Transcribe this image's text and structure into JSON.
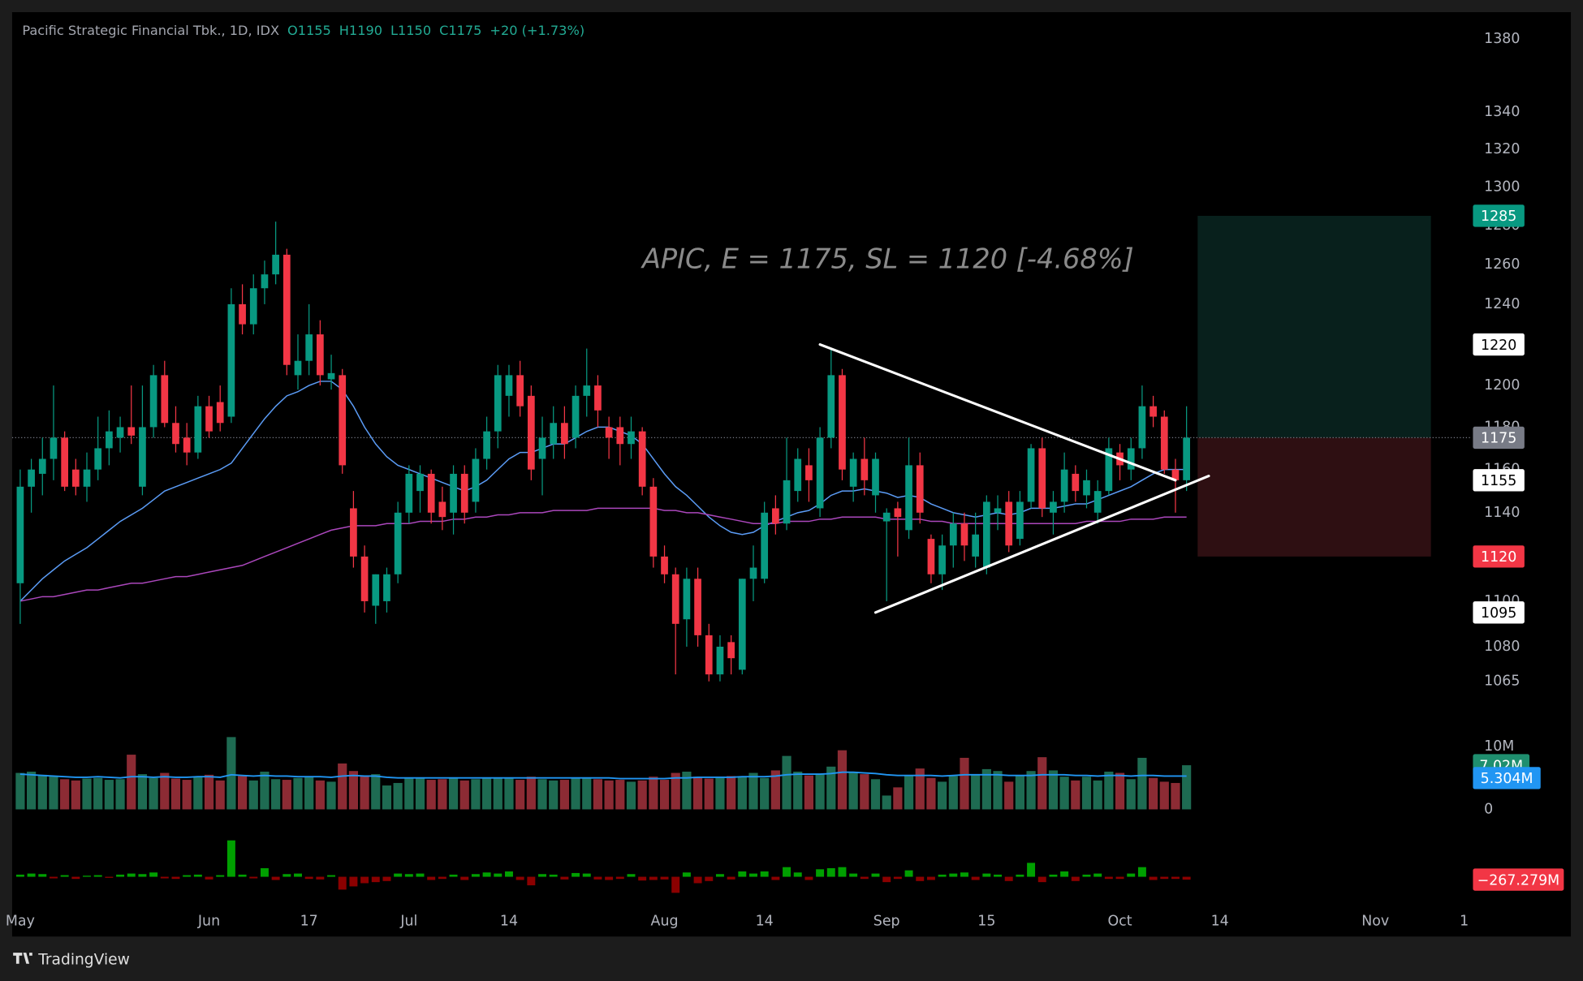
{
  "chart_data": {
    "type": "candlestick",
    "symbol": "Pacific Strategic Financial Tbk., 1D, IDX",
    "legend_values": [
      "O1155",
      "H1190",
      "L1150",
      "C1175",
      "+20 (+1.73%)"
    ],
    "annotation": "APIC, E = 1175, SL = 1120 [-4.68%]",
    "up_color": "#089981",
    "down_color": "#f23645",
    "log": true,
    "ylim": [
      1050,
      1395
    ],
    "yticks": [
      1380,
      1340,
      1320,
      1300,
      1280,
      1260,
      1240,
      1200,
      1180,
      1160,
      1140,
      1100,
      1080,
      1065
    ],
    "xlim": [
      -0.73,
      139.6
    ],
    "xticks": [
      {
        "value": 0,
        "label": "May"
      },
      {
        "value": 17,
        "label": "Jun"
      },
      {
        "value": 26,
        "label": "17"
      },
      {
        "value": 35,
        "label": "Jul"
      },
      {
        "value": 44,
        "label": "14"
      },
      {
        "value": 58,
        "label": "Aug"
      },
      {
        "value": 67,
        "label": "14"
      },
      {
        "value": 78,
        "label": "Sep"
      },
      {
        "value": 87,
        "label": "15"
      },
      {
        "value": 99,
        "label": "Oct"
      },
      {
        "value": 108,
        "label": "14"
      },
      {
        "value": 122,
        "label": "Nov"
      },
      {
        "value": 130,
        "label": "1"
      }
    ],
    "ohlc": [
      [
        1108,
        1160,
        1090,
        1152
      ],
      [
        1152,
        1165,
        1140,
        1160
      ],
      [
        1158,
        1175,
        1148,
        1165
      ],
      [
        1165,
        1200,
        1155,
        1175
      ],
      [
        1175,
        1178,
        1150,
        1152
      ],
      [
        1160,
        1165,
        1148,
        1152
      ],
      [
        1152,
        1168,
        1145,
        1160
      ],
      [
        1160,
        1185,
        1155,
        1170
      ],
      [
        1170,
        1188,
        1162,
        1178
      ],
      [
        1175,
        1185,
        1168,
        1180
      ],
      [
        1180,
        1200,
        1172,
        1176
      ],
      [
        1152,
        1200,
        1148,
        1180
      ],
      [
        1180,
        1210,
        1175,
        1205
      ],
      [
        1205,
        1212,
        1180,
        1182
      ],
      [
        1182,
        1190,
        1168,
        1172
      ],
      [
        1175,
        1182,
        1162,
        1168
      ],
      [
        1168,
        1195,
        1165,
        1190
      ],
      [
        1190,
        1195,
        1175,
        1178
      ],
      [
        1192,
        1200,
        1178,
        1182
      ],
      [
        1185,
        1248,
        1182,
        1240
      ],
      [
        1240,
        1250,
        1225,
        1230
      ],
      [
        1230,
        1255,
        1225,
        1248
      ],
      [
        1248,
        1262,
        1240,
        1255
      ],
      [
        1255,
        1282,
        1250,
        1265
      ],
      [
        1265,
        1268,
        1205,
        1210
      ],
      [
        1205,
        1225,
        1198,
        1212
      ],
      [
        1212,
        1240,
        1205,
        1225
      ],
      [
        1225,
        1232,
        1200,
        1205
      ],
      [
        1203,
        1215,
        1198,
        1206
      ],
      [
        1205,
        1208,
        1158,
        1162
      ],
      [
        1142,
        1150,
        1115,
        1120
      ],
      [
        1120,
        1125,
        1095,
        1100
      ],
      [
        1098,
        1112,
        1090,
        1112
      ],
      [
        1100,
        1115,
        1095,
        1112
      ],
      [
        1112,
        1145,
        1108,
        1140
      ],
      [
        1140,
        1162,
        1135,
        1158
      ],
      [
        1150,
        1162,
        1140,
        1158
      ],
      [
        1158,
        1160,
        1135,
        1140
      ],
      [
        1145,
        1152,
        1132,
        1138
      ],
      [
        1140,
        1162,
        1130,
        1158
      ],
      [
        1158,
        1162,
        1135,
        1140
      ],
      [
        1145,
        1170,
        1140,
        1165
      ],
      [
        1165,
        1185,
        1160,
        1178
      ],
      [
        1178,
        1210,
        1170,
        1205
      ],
      [
        1195,
        1210,
        1185,
        1205
      ],
      [
        1205,
        1212,
        1185,
        1190
      ],
      [
        1195,
        1200,
        1155,
        1160
      ],
      [
        1165,
        1185,
        1148,
        1175
      ],
      [
        1172,
        1190,
        1165,
        1182
      ],
      [
        1182,
        1190,
        1165,
        1172
      ],
      [
        1175,
        1200,
        1170,
        1195
      ],
      [
        1195,
        1218,
        1185,
        1200
      ],
      [
        1200,
        1205,
        1180,
        1188
      ],
      [
        1180,
        1185,
        1165,
        1175
      ],
      [
        1180,
        1185,
        1162,
        1172
      ],
      [
        1172,
        1185,
        1165,
        1178
      ],
      [
        1178,
        1180,
        1148,
        1152
      ],
      [
        1152,
        1156,
        1115,
        1120
      ],
      [
        1120,
        1125,
        1108,
        1112
      ],
      [
        1112,
        1115,
        1068,
        1090
      ],
      [
        1092,
        1115,
        1080,
        1110
      ],
      [
        1110,
        1115,
        1080,
        1085
      ],
      [
        1085,
        1090,
        1065,
        1068
      ],
      [
        1068,
        1085,
        1065,
        1080
      ],
      [
        1082,
        1085,
        1068,
        1075
      ],
      [
        1070,
        1110,
        1068,
        1110
      ],
      [
        1110,
        1125,
        1100,
        1115
      ],
      [
        1110,
        1145,
        1108,
        1140
      ],
      [
        1142,
        1148,
        1130,
        1135
      ],
      [
        1135,
        1175,
        1132,
        1155
      ],
      [
        1150,
        1170,
        1145,
        1165
      ],
      [
        1162,
        1170,
        1145,
        1155
      ],
      [
        1142,
        1180,
        1138,
        1175
      ],
      [
        1175,
        1218,
        1170,
        1205
      ],
      [
        1205,
        1208,
        1155,
        1160
      ],
      [
        1152,
        1168,
        1145,
        1165
      ],
      [
        1165,
        1175,
        1148,
        1155
      ],
      [
        1148,
        1168,
        1140,
        1165
      ],
      [
        1136,
        1142,
        1100,
        1140
      ],
      [
        1142,
        1145,
        1120,
        1138
      ],
      [
        1132,
        1175,
        1128,
        1162
      ],
      [
        1162,
        1168,
        1135,
        1140
      ],
      [
        1128,
        1130,
        1108,
        1112
      ],
      [
        1112,
        1130,
        1105,
        1125
      ],
      [
        1125,
        1140,
        1115,
        1135
      ],
      [
        1135,
        1140,
        1118,
        1125
      ],
      [
        1120,
        1140,
        1115,
        1130
      ],
      [
        1115,
        1148,
        1112,
        1145
      ],
      [
        1140,
        1148,
        1132,
        1142
      ],
      [
        1145,
        1150,
        1122,
        1125
      ],
      [
        1128,
        1150,
        1125,
        1145
      ],
      [
        1145,
        1172,
        1142,
        1170
      ],
      [
        1170,
        1175,
        1138,
        1142
      ],
      [
        1140,
        1150,
        1130,
        1145
      ],
      [
        1145,
        1168,
        1140,
        1160
      ],
      [
        1158,
        1162,
        1145,
        1150
      ],
      [
        1148,
        1160,
        1142,
        1155
      ],
      [
        1140,
        1155,
        1135,
        1150
      ],
      [
        1150,
        1175,
        1148,
        1170
      ],
      [
        1168,
        1172,
        1155,
        1162
      ],
      [
        1160,
        1175,
        1155,
        1170
      ],
      [
        1170,
        1200,
        1165,
        1190
      ],
      [
        1190,
        1195,
        1180,
        1185
      ],
      [
        1185,
        1188,
        1158,
        1160
      ],
      [
        1160,
        1165,
        1140,
        1155
      ],
      [
        1155,
        1190,
        1150,
        1175
      ]
    ],
    "ma": [
      {
        "color": "#5b9cf6",
        "values": [
          1100,
          1105,
          1110,
          1114,
          1118,
          1121,
          1124,
          1128,
          1132,
          1136,
          1139,
          1142,
          1146,
          1150,
          1152,
          1154,
          1156,
          1158,
          1160,
          1163,
          1170,
          1177,
          1184,
          1190,
          1195,
          1197,
          1200,
          1202,
          1202,
          1198,
          1190,
          1180,
          1172,
          1166,
          1162,
          1160,
          1158,
          1156,
          1154,
          1152,
          1150,
          1152,
          1155,
          1160,
          1165,
          1168,
          1168,
          1170,
          1172,
          1172,
          1175,
          1178,
          1180,
          1180,
          1178,
          1176,
          1172,
          1165,
          1158,
          1152,
          1148,
          1143,
          1138,
          1134,
          1131,
          1130,
          1131,
          1134,
          1136,
          1138,
          1140,
          1141,
          1144,
          1148,
          1150,
          1150,
          1151,
          1150,
          1149,
          1147,
          1148,
          1147,
          1144,
          1142,
          1140,
          1139,
          1138,
          1139,
          1140,
          1139,
          1140,
          1142,
          1142,
          1142,
          1143,
          1144,
          1144,
          1146,
          1148,
          1150,
          1152,
          1155,
          1158,
          1160,
          1160,
          1160
        ]
      },
      {
        "color": "#ab47bc",
        "values": [
          1100,
          1101,
          1102,
          1102,
          1103,
          1104,
          1105,
          1105,
          1106,
          1107,
          1108,
          1108,
          1109,
          1110,
          1111,
          1111,
          1112,
          1113,
          1114,
          1115,
          1116,
          1118,
          1120,
          1122,
          1124,
          1126,
          1128,
          1130,
          1132,
          1133,
          1134,
          1134,
          1134,
          1135,
          1135,
          1135,
          1136,
          1136,
          1136,
          1137,
          1137,
          1138,
          1138,
          1139,
          1139,
          1140,
          1140,
          1140,
          1141,
          1141,
          1141,
          1141,
          1142,
          1142,
          1142,
          1142,
          1142,
          1142,
          1141,
          1141,
          1140,
          1140,
          1139,
          1138,
          1137,
          1136,
          1135,
          1135,
          1135,
          1136,
          1136,
          1136,
          1137,
          1137,
          1138,
          1138,
          1138,
          1138,
          1137,
          1137,
          1137,
          1137,
          1136,
          1136,
          1135,
          1135,
          1135,
          1135,
          1135,
          1135,
          1135,
          1135,
          1135,
          1135,
          1135,
          1135,
          1136,
          1136,
          1136,
          1136,
          1137,
          1137,
          1137,
          1138,
          1138,
          1138
        ]
      }
    ],
    "trendlines": [
      {
        "color": "#ffffff",
        "x": [
          72,
          104
        ],
        "y": [
          1220,
          1155
        ]
      },
      {
        "color": "#ffffff",
        "x": [
          77,
          107
        ],
        "y": [
          1095,
          1157
        ]
      }
    ],
    "position": {
      "entry": 1175,
      "target": 1285,
      "stop": 1120,
      "x": [
        106,
        127
      ],
      "target_color": "#08201c",
      "stop_color": "#2e0f12"
    },
    "volume": {
      "up_color": "#1e6b52",
      "down_color": "#8c2b34",
      "badge_color": "#1f8f6f",
      "ylim": [
        0,
        13
      ],
      "yticks": [
        {
          "value": 10,
          "label": "10M"
        },
        0
      ],
      "values": [
        5.8,
        6.0,
        5.5,
        5.3,
        4.8,
        4.6,
        4.9,
        5.0,
        4.7,
        4.8,
        8.7,
        5.6,
        5.0,
        5.8,
        4.9,
        4.7,
        5.2,
        5.5,
        4.6,
        11.5,
        5.3,
        4.6,
        6.0,
        4.8,
        4.7,
        5.0,
        5.2,
        4.6,
        4.4,
        7.3,
        6.1,
        5.4,
        5.6,
        3.8,
        4.2,
        4.9,
        5.0,
        4.7,
        4.8,
        5.0,
        4.6,
        4.8,
        4.9,
        5.1,
        5.0,
        4.7,
        5.2,
        4.8,
        4.6,
        4.7,
        4.9,
        5.0,
        4.8,
        4.6,
        4.7,
        4.4,
        4.6,
        5.2,
        4.7,
        5.8,
        6.0,
        5.2,
        4.9,
        5.0,
        5.3,
        5.1,
        5.8,
        5.0,
        6.2,
        8.5,
        6.0,
        5.4,
        5.7,
        6.8,
        9.4,
        6.0,
        5.6,
        4.8,
        2.2,
        3.5,
        5.4,
        6.5,
        5.0,
        4.4,
        5.3,
        8.2,
        5.6,
        6.4,
        6.1,
        4.4,
        5.4,
        6.1,
        8.3,
        6.2,
        5.2,
        4.6,
        5.2,
        4.6,
        6.0,
        5.8,
        4.8,
        8.2,
        5.0,
        4.4,
        4.2,
        7.02
      ],
      "last_label": "7.02M",
      "ma": {
        "color": "#2196f3",
        "last_label": "5.304M",
        "values": [
          5.6,
          5.5,
          5.4,
          5.3,
          5.2,
          5.1,
          5.1,
          5.2,
          5.1,
          5.0,
          5.2,
          5.2,
          5.1,
          5.2,
          5.1,
          5.1,
          5.2,
          5.2,
          5.1,
          5.5,
          5.4,
          5.3,
          5.4,
          5.3,
          5.3,
          5.2,
          5.2,
          5.2,
          5.1,
          5.3,
          5.4,
          5.3,
          5.3,
          5.1,
          5.0,
          5.0,
          5.0,
          5.0,
          5.0,
          5.0,
          5.0,
          5.0,
          5.0,
          5.0,
          5.0,
          5.0,
          5.0,
          5.0,
          5.0,
          5.0,
          5.0,
          5.0,
          5.0,
          5.0,
          4.9,
          4.9,
          4.9,
          4.9,
          4.9,
          5.0,
          5.0,
          5.1,
          5.1,
          5.1,
          5.1,
          5.2,
          5.2,
          5.2,
          5.3,
          5.5,
          5.6,
          5.6,
          5.6,
          5.7,
          5.9,
          5.9,
          5.8,
          5.7,
          5.5,
          5.4,
          5.4,
          5.4,
          5.4,
          5.3,
          5.4,
          5.5,
          5.5,
          5.5,
          5.5,
          5.4,
          5.4,
          5.4,
          5.5,
          5.5,
          5.5,
          5.4,
          5.4,
          5.3,
          5.4,
          5.4,
          5.3,
          5.4,
          5.4,
          5.3,
          5.3,
          5.304
        ]
      }
    },
    "oscillator": {
      "up_color": "#00a000",
      "down_color": "#8b0000",
      "badge_color": "#f23645",
      "ylim": [
        -2000,
        4600
      ],
      "values": [
        200,
        300,
        250,
        -150,
        150,
        -200,
        100,
        150,
        -100,
        200,
        300,
        250,
        400,
        -150,
        -200,
        150,
        200,
        -250,
        150,
        3400,
        200,
        -150,
        800,
        -300,
        250,
        300,
        -200,
        -250,
        150,
        -1200,
        -900,
        -600,
        -500,
        -400,
        300,
        250,
        300,
        -300,
        -200,
        200,
        -300,
        250,
        400,
        300,
        500,
        -300,
        -800,
        250,
        200,
        -250,
        350,
        300,
        -250,
        -300,
        -200,
        250,
        -350,
        -300,
        -250,
        -1500,
        400,
        -600,
        -400,
        250,
        -250,
        500,
        300,
        500,
        -300,
        900,
        400,
        -300,
        700,
        800,
        900,
        300,
        -200,
        300,
        -500,
        -200,
        600,
        -400,
        -300,
        200,
        300,
        400,
        -300,
        300,
        200,
        -400,
        200,
        1300,
        -500,
        200,
        500,
        -400,
        200,
        300,
        -200,
        -200,
        300,
        900,
        -300,
        -200,
        -200,
        -267.279
      ],
      "last_label": "−267.279M"
    },
    "brand": "TradingView"
  }
}
